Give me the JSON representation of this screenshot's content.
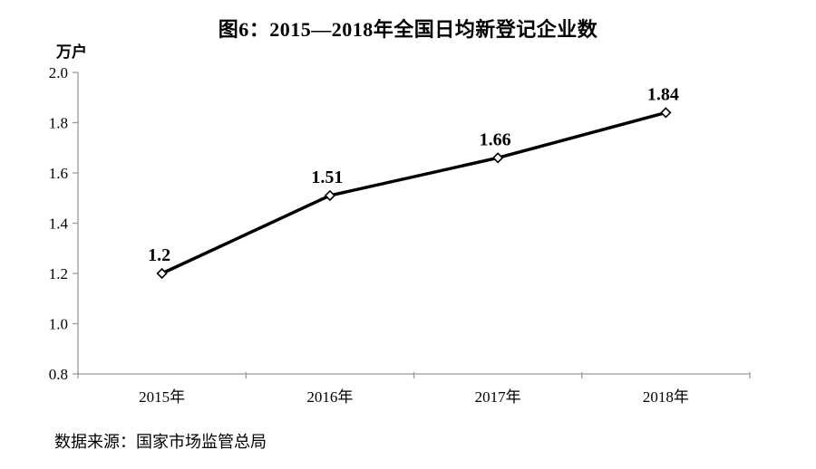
{
  "chart_data": {
    "type": "line",
    "title": "图6：2015—2018年全国日均新登记企业数",
    "unit_label": "万户",
    "categories": [
      "2015年",
      "2016年",
      "2017年",
      "2018年"
    ],
    "values": [
      1.2,
      1.51,
      1.66,
      1.84
    ],
    "point_labels": [
      "1.2",
      "1.51",
      "1.66",
      "1.84"
    ],
    "ylim": [
      0.8,
      2.0
    ],
    "ytick_labels": [
      "2.0",
      "1.8",
      "1.6",
      "1.4",
      "1.2",
      "1.0",
      "0.8"
    ],
    "grid": false,
    "legend": "none",
    "line_color": "#000000",
    "marker": "open-diamond",
    "marker_fill": "#ffffff",
    "axis_color": "#9a9a9a",
    "source": "数据来源：国家市场监管总局"
  }
}
